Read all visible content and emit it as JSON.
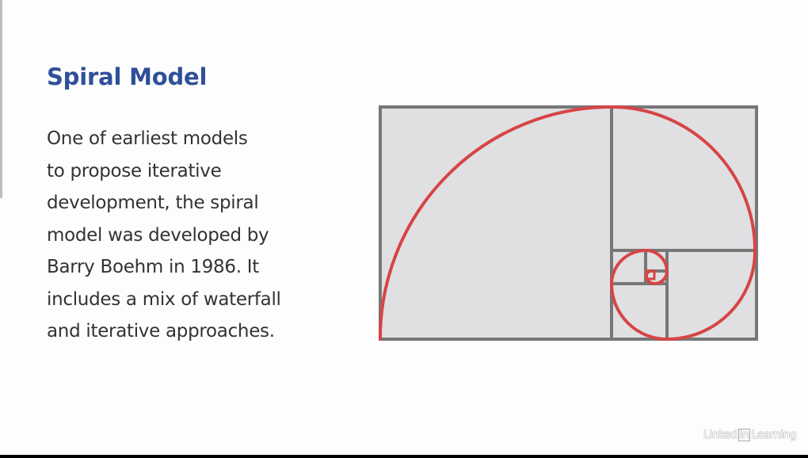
{
  "slide": {
    "title": "Spiral Model",
    "body_lines": [
      "One of earliest models",
      "to propose iterative",
      "development, the spiral",
      "model was developed by",
      "Barry Boehm in 1986. It",
      "includes a mix of waterfall",
      "and iterative approaches."
    ],
    "title_color": "#2f4f99",
    "text_color": "#333333"
  },
  "figure": {
    "rectangle_fill": "#e0e0e3",
    "grid_line_color": "#777777",
    "spiral_color": "#d64545"
  },
  "watermark": {
    "brand_left": "Linked",
    "brand_mid": "in",
    "brand_right": "Learning"
  }
}
